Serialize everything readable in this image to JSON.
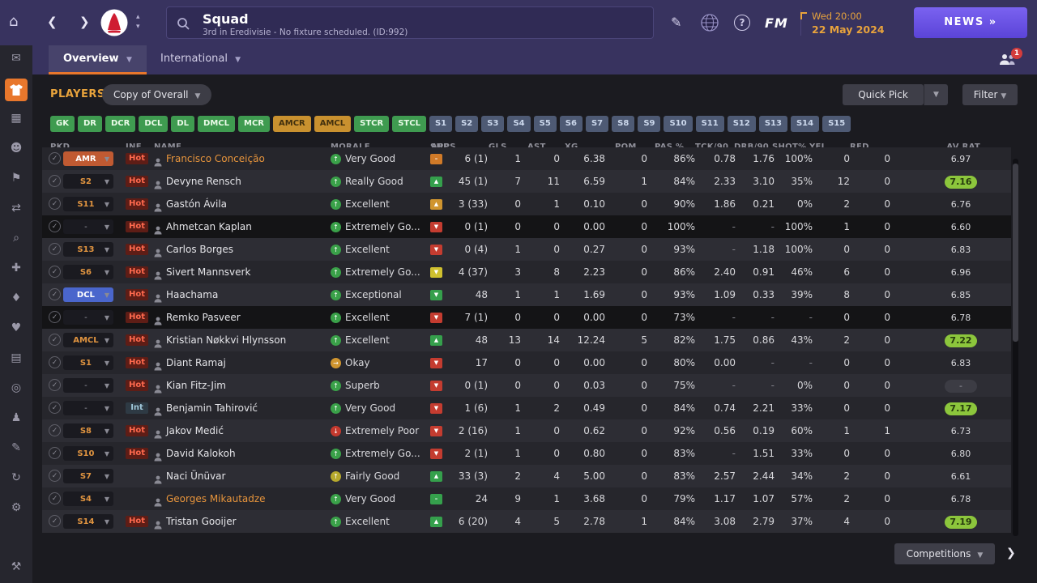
{
  "header": {
    "nav_back": "❮",
    "nav_forward": "❯",
    "title": "Squad",
    "subtitle": "3rd in Eredivisie - No fixture scheduled. (ID:992)",
    "edit_icon": "✎",
    "fm_logo": "FM",
    "datetime": {
      "line1": "Wed 20:00",
      "line2": "22 May 2024"
    },
    "news_button": "NEWS »",
    "tabs": [
      {
        "label": "Overview",
        "active": true
      },
      {
        "label": "International",
        "active": false
      }
    ],
    "notification_count": "1"
  },
  "toolbar": {
    "players_label": "PLAYERS",
    "view_selector": "Copy of Overall",
    "quick_pick": "Quick Pick",
    "filter": "Filter"
  },
  "position_filters": [
    {
      "label": "GK",
      "style": "green"
    },
    {
      "label": "DR",
      "style": "green"
    },
    {
      "label": "DCR",
      "style": "green"
    },
    {
      "label": "DCL",
      "style": "green"
    },
    {
      "label": "DL",
      "style": "green"
    },
    {
      "label": "DMCL",
      "style": "green"
    },
    {
      "label": "MCR",
      "style": "green"
    },
    {
      "label": "AMCR",
      "style": "amber"
    },
    {
      "label": "AMCL",
      "style": "amber"
    },
    {
      "label": "STCR",
      "style": "green"
    },
    {
      "label": "STCL",
      "style": "green"
    },
    {
      "label": "S1",
      "style": "slate"
    },
    {
      "label": "S2",
      "style": "slate"
    },
    {
      "label": "S3",
      "style": "slate"
    },
    {
      "label": "S4",
      "style": "slate"
    },
    {
      "label": "S5",
      "style": "slate"
    },
    {
      "label": "S6",
      "style": "slate"
    },
    {
      "label": "S7",
      "style": "slate"
    },
    {
      "label": "S8",
      "style": "slate"
    },
    {
      "label": "S9",
      "style": "slate"
    },
    {
      "label": "S10",
      "style": "slate"
    },
    {
      "label": "S11",
      "style": "slate"
    },
    {
      "label": "S12",
      "style": "slate"
    },
    {
      "label": "S13",
      "style": "slate"
    },
    {
      "label": "S14",
      "style": "slate"
    },
    {
      "label": "S15",
      "style": "slate"
    }
  ],
  "table": {
    "columns": [
      "PKD",
      "INF",
      "NAME",
      "MORALE",
      "SHP",
      "APPS",
      "GLS",
      "AST",
      "XG",
      "POM",
      "PAS %",
      "TCK/90",
      "DRB/90",
      "SHOT%",
      "YEL",
      "RED",
      "AV RAT"
    ],
    "rows": [
      {
        "pkd": "AMR",
        "pkd_style": "orange",
        "inf": "Hot",
        "name": "Francisco Conceição",
        "name_style": "orange",
        "morale": "Very Good",
        "morale_color": "green",
        "shp": "orange-dash",
        "apps": "6 (1)",
        "gls": "1",
        "ast": "0",
        "xg": "6.38",
        "pom": "0",
        "pas": "86%",
        "tck": "0.78",
        "drb": "1.76",
        "shot": "100%",
        "yel": "0",
        "red": "0",
        "avrat": "6.97",
        "avrat_style": "plain",
        "stripe": "b"
      },
      {
        "pkd": "S2",
        "pkd_style": "text",
        "inf": "Hot",
        "name": "Devyne Rensch",
        "name_style": "normal",
        "morale": "Really Good",
        "morale_color": "green",
        "shp": "green-up",
        "apps": "45 (1)",
        "gls": "7",
        "ast": "11",
        "xg": "6.59",
        "pom": "1",
        "pas": "84%",
        "tck": "2.33",
        "drb": "3.10",
        "shot": "35%",
        "yel": "12",
        "red": "0",
        "avrat": "7.16",
        "avrat_style": "green",
        "stripe": "a"
      },
      {
        "pkd": "S11",
        "pkd_style": "text",
        "inf": "Hot",
        "name": "Gastón Ávila",
        "name_style": "normal",
        "morale": "Excellent",
        "morale_color": "green",
        "shp": "amber-up",
        "apps": "3 (33)",
        "gls": "0",
        "ast": "1",
        "xg": "0.10",
        "pom": "0",
        "pas": "90%",
        "tck": "1.86",
        "drb": "0.21",
        "shot": "0%",
        "yel": "2",
        "red": "0",
        "avrat": "6.76",
        "avrat_style": "plain",
        "stripe": "b"
      },
      {
        "pkd": "-",
        "pkd_style": "dash",
        "inf": "Hot",
        "name": "Ahmetcan Kaplan",
        "name_style": "normal",
        "morale": "Extremely Go...",
        "morale_color": "green",
        "shp": "red-down",
        "apps": "0 (1)",
        "gls": "0",
        "ast": "0",
        "xg": "0.00",
        "pom": "0",
        "pas": "100%",
        "tck": "-",
        "drb": "-",
        "shot": "100%",
        "yel": "1",
        "red": "0",
        "avrat": "6.60",
        "avrat_style": "plain",
        "stripe": "black"
      },
      {
        "pkd": "S13",
        "pkd_style": "text",
        "inf": "Hot",
        "name": "Carlos Borges",
        "name_style": "normal",
        "morale": "Excellent",
        "morale_color": "green",
        "shp": "red-down",
        "apps": "0 (4)",
        "gls": "1",
        "ast": "0",
        "xg": "0.27",
        "pom": "0",
        "pas": "93%",
        "tck": "-",
        "drb": "1.18",
        "shot": "100%",
        "yel": "0",
        "red": "0",
        "avrat": "6.83",
        "avrat_style": "plain",
        "stripe": "a"
      },
      {
        "pkd": "S6",
        "pkd_style": "text",
        "inf": "Hot",
        "name": "Sivert Mannsverk",
        "name_style": "normal",
        "morale": "Extremely Go...",
        "morale_color": "green",
        "shp": "yellow-down",
        "apps": "4 (37)",
        "gls": "3",
        "ast": "8",
        "xg": "2.23",
        "pom": "0",
        "pas": "86%",
        "tck": "2.40",
        "drb": "0.91",
        "shot": "46%",
        "yel": "6",
        "red": "0",
        "avrat": "6.96",
        "avrat_style": "plain",
        "stripe": "b"
      },
      {
        "pkd": "DCL",
        "pkd_style": "blue",
        "inf": "Hot",
        "name": "Haachama",
        "name_style": "normal",
        "morale": "Exceptional",
        "morale_color": "green",
        "shp": "green-down",
        "apps": "48",
        "gls": "1",
        "ast": "1",
        "xg": "1.69",
        "pom": "0",
        "pas": "93%",
        "tck": "1.09",
        "drb": "0.33",
        "shot": "39%",
        "yel": "8",
        "red": "0",
        "avrat": "6.85",
        "avrat_style": "plain",
        "stripe": "a"
      },
      {
        "pkd": "-",
        "pkd_style": "dash",
        "inf": "Hot",
        "name": "Remko Pasveer",
        "name_style": "normal",
        "morale": "Excellent",
        "morale_color": "green",
        "shp": "red-down",
        "apps": "7 (1)",
        "gls": "0",
        "ast": "0",
        "xg": "0.00",
        "pom": "0",
        "pas": "73%",
        "tck": "-",
        "drb": "-",
        "shot": "-",
        "yel": "0",
        "red": "0",
        "avrat": "6.78",
        "avrat_style": "plain",
        "stripe": "black"
      },
      {
        "pkd": "AMCL",
        "pkd_style": "text",
        "inf": "Hot",
        "name": "Kristian Nøkkvi Hlynsson",
        "name_style": "normal",
        "morale": "Excellent",
        "morale_color": "green",
        "shp": "green-up",
        "apps": "48",
        "gls": "13",
        "ast": "14",
        "xg": "12.24",
        "pom": "5",
        "pas": "82%",
        "tck": "1.75",
        "drb": "0.86",
        "shot": "43%",
        "yel": "2",
        "red": "0",
        "avrat": "7.22",
        "avrat_style": "green",
        "stripe": "a"
      },
      {
        "pkd": "S1",
        "pkd_style": "text",
        "inf": "Hot",
        "name": "Diant Ramaj",
        "name_style": "normal",
        "morale": "Okay",
        "morale_color": "amber",
        "shp": "red-down",
        "apps": "17",
        "gls": "0",
        "ast": "0",
        "xg": "0.00",
        "pom": "0",
        "pas": "80%",
        "tck": "0.00",
        "drb": "-",
        "shot": "-",
        "yel": "0",
        "red": "0",
        "avrat": "6.83",
        "avrat_style": "plain",
        "stripe": "b"
      },
      {
        "pkd": "-",
        "pkd_style": "dash",
        "inf": "Hot",
        "name": "Kian Fitz-Jim",
        "name_style": "normal",
        "morale": "Superb",
        "morale_color": "green",
        "shp": "red-down",
        "apps": "0 (1)",
        "gls": "0",
        "ast": "0",
        "xg": "0.03",
        "pom": "0",
        "pas": "75%",
        "tck": "-",
        "drb": "-",
        "shot": "0%",
        "yel": "0",
        "red": "0",
        "avrat": "-",
        "avrat_style": "dash",
        "stripe": "a"
      },
      {
        "pkd": "-",
        "pkd_style": "dash",
        "inf": "Int",
        "name": "Benjamin Tahirović",
        "name_style": "normal",
        "morale": "Very Good",
        "morale_color": "green",
        "shp": "red-down",
        "apps": "1 (6)",
        "gls": "1",
        "ast": "2",
        "xg": "0.49",
        "pom": "0",
        "pas": "84%",
        "tck": "0.74",
        "drb": "2.21",
        "shot": "33%",
        "yel": "0",
        "red": "0",
        "avrat": "7.17",
        "avrat_style": "green",
        "stripe": "b"
      },
      {
        "pkd": "S8",
        "pkd_style": "text",
        "inf": "Hot",
        "name": "Jakov Medić",
        "name_style": "normal",
        "morale": "Extremely Poor",
        "morale_color": "red",
        "shp": "red-down",
        "apps": "2 (16)",
        "gls": "1",
        "ast": "0",
        "xg": "0.62",
        "pom": "0",
        "pas": "92%",
        "tck": "0.56",
        "drb": "0.19",
        "shot": "60%",
        "yel": "1",
        "red": "1",
        "avrat": "6.73",
        "avrat_style": "plain",
        "stripe": "a"
      },
      {
        "pkd": "S10",
        "pkd_style": "text",
        "inf": "Hot",
        "name": "David Kalokoh",
        "name_style": "normal",
        "morale": "Extremely Go...",
        "morale_color": "green",
        "shp": "red-down",
        "apps": "2 (1)",
        "gls": "1",
        "ast": "0",
        "xg": "0.80",
        "pom": "0",
        "pas": "83%",
        "tck": "-",
        "drb": "1.51",
        "shot": "33%",
        "yel": "0",
        "red": "0",
        "avrat": "6.80",
        "avrat_style": "plain",
        "stripe": "b"
      },
      {
        "pkd": "S7",
        "pkd_style": "text",
        "inf": "",
        "name": "Naci Ünüvar",
        "name_style": "normal",
        "morale": "Fairly Good",
        "morale_color": "yellow",
        "shp": "green-up",
        "apps": "33 (3)",
        "gls": "2",
        "ast": "4",
        "xg": "5.00",
        "pom": "0",
        "pas": "83%",
        "tck": "2.57",
        "drb": "2.44",
        "shot": "34%",
        "yel": "2",
        "red": "0",
        "avrat": "6.61",
        "avrat_style": "plain",
        "stripe": "a"
      },
      {
        "pkd": "S4",
        "pkd_style": "text",
        "inf": "",
        "name": "Georges Mikautadze",
        "name_style": "orange",
        "morale": "Very Good",
        "morale_color": "green",
        "shp": "green-dash",
        "apps": "24",
        "gls": "9",
        "ast": "1",
        "xg": "3.68",
        "pom": "0",
        "pas": "79%",
        "tck": "1.17",
        "drb": "1.07",
        "shot": "57%",
        "yel": "2",
        "red": "0",
        "avrat": "6.78",
        "avrat_style": "plain",
        "stripe": "b"
      },
      {
        "pkd": "S14",
        "pkd_style": "text",
        "inf": "Hot",
        "name": "Tristan Gooijer",
        "name_style": "normal",
        "morale": "Excellent",
        "morale_color": "green",
        "shp": "green-up",
        "apps": "6 (20)",
        "gls": "4",
        "ast": "5",
        "xg": "2.78",
        "pom": "1",
        "pas": "84%",
        "tck": "3.08",
        "drb": "2.79",
        "shot": "37%",
        "yel": "4",
        "red": "0",
        "avrat": "7.19",
        "avrat_style": "green",
        "stripe": "a"
      }
    ]
  },
  "footer": {
    "competitions": "Competitions",
    "next_chevron": "❯"
  },
  "sidebar": {
    "icons": [
      {
        "name": "inbox-icon",
        "glyph": "✉"
      },
      {
        "name": "squad-icon",
        "glyph": "",
        "active": true
      },
      {
        "name": "tactics-icon",
        "glyph": "▦"
      },
      {
        "name": "staff-icon",
        "glyph": "☻"
      },
      {
        "name": "training-icon",
        "glyph": "⚑"
      },
      {
        "name": "transfers-icon",
        "glyph": "⇄"
      },
      {
        "name": "scouting-icon",
        "glyph": "⌕"
      },
      {
        "name": "medical-icon",
        "glyph": "✚"
      },
      {
        "name": "club-info-icon",
        "glyph": "♦"
      },
      {
        "name": "dynamics-icon",
        "glyph": "♥"
      },
      {
        "name": "schedule-icon",
        "glyph": "▤"
      },
      {
        "name": "finances-icon",
        "glyph": "◎"
      },
      {
        "name": "competitions-icon",
        "glyph": "♟"
      },
      {
        "name": "notes-icon",
        "glyph": "✎"
      },
      {
        "name": "history-icon",
        "glyph": "↻"
      },
      {
        "name": "settings-icon",
        "glyph": "⚙"
      }
    ],
    "bottom_icon": {
      "name": "devtools-icon",
      "glyph": "⚒"
    }
  }
}
